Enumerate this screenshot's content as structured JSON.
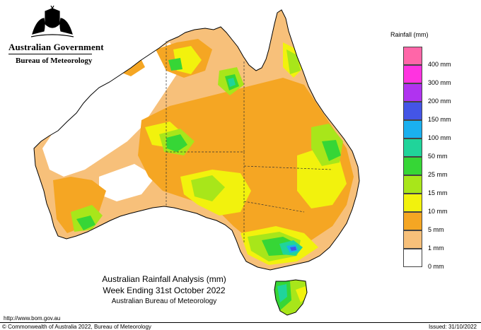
{
  "header": {
    "government": "Australian Government",
    "bureau": "Bureau of Meteorology"
  },
  "caption": {
    "line1": "Australian Rainfall Analysis (mm)",
    "line2": "Week Ending 31st October 2022",
    "line3": "Australian Bureau of Meteorology"
  },
  "footer": {
    "url": "http://www.bom.gov.au",
    "copyright": "© Commonwealth of Australia 2022, Bureau of Meteorology",
    "issued": "Issued: 31/10/2022"
  },
  "legend": {
    "title": "Rainfall (mm)",
    "items": [
      {
        "label": "",
        "color": "#ff66a8"
      },
      {
        "label": "400 mm",
        "color": "#ff33e0"
      },
      {
        "label": "300 mm",
        "color": "#b033f0"
      },
      {
        "label": "200 mm",
        "color": "#4455e6"
      },
      {
        "label": "150 mm",
        "color": "#1ab0ef"
      },
      {
        "label": "100 mm",
        "color": "#20d49a"
      },
      {
        "label": "50 mm",
        "color": "#36d636"
      },
      {
        "label": "25 mm",
        "color": "#a8e61a"
      },
      {
        "label": "15 mm",
        "color": "#f2f20d"
      },
      {
        "label": "10 mm",
        "color": "#f5a623"
      },
      {
        "label": "5 mm",
        "color": "#f7c07a"
      },
      {
        "label": "1 mm",
        "color": "#ffffff"
      }
    ],
    "bottom_label": "0 mm"
  }
}
